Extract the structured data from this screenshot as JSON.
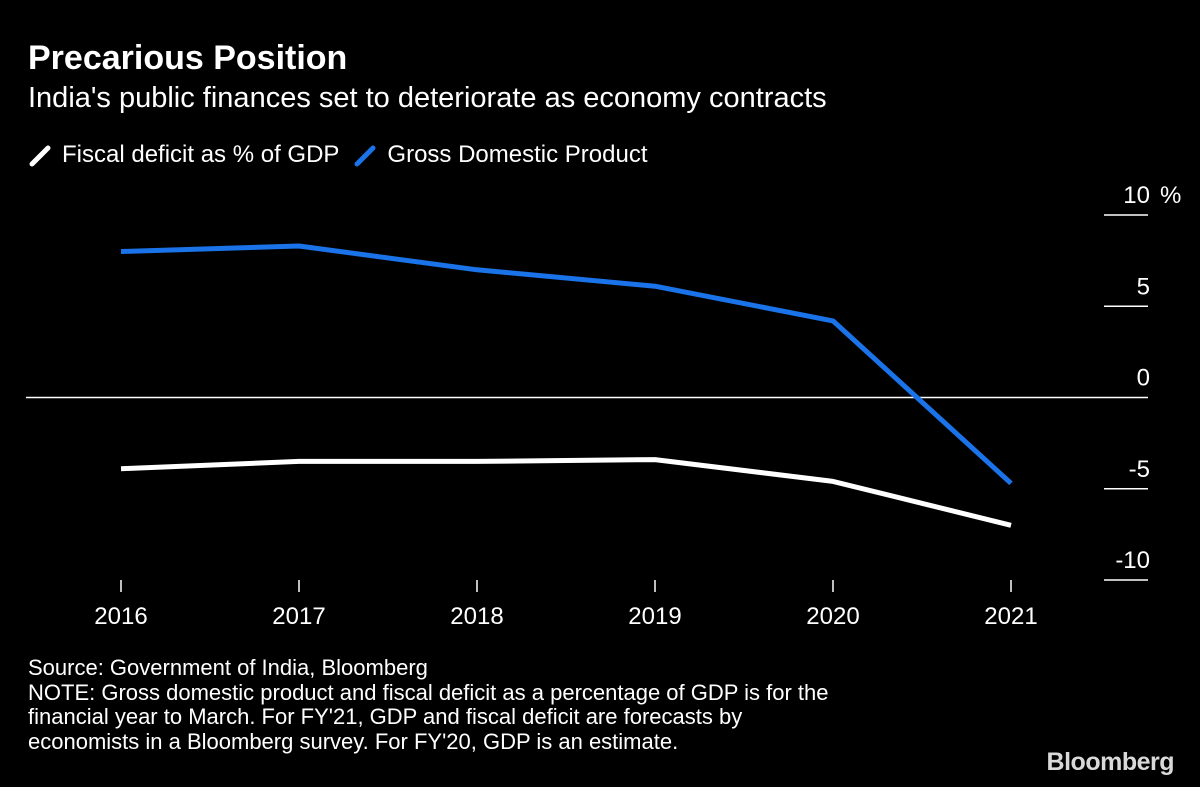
{
  "chart_data": {
    "type": "line",
    "title": "Precarious Position",
    "subtitle": "India's public finances set to deteriorate as economy contracts",
    "categories": [
      "2016",
      "2017",
      "2018",
      "2019",
      "2020",
      "2021"
    ],
    "series": [
      {
        "name": "Fiscal deficit as % of GDP",
        "color": "#ffffff",
        "values": [
          -3.9,
          -3.5,
          -3.5,
          -3.4,
          -4.6,
          -7.0
        ]
      },
      {
        "name": "Gross Domestic Product",
        "color": "#1a73e8",
        "values": [
          8.0,
          8.3,
          7.0,
          6.1,
          4.2,
          -4.7
        ]
      }
    ],
    "ylim": [
      -10,
      10
    ],
    "yticks": [
      10,
      5,
      0,
      -5,
      -10
    ],
    "ytick_labels": [
      "10",
      "5",
      "0",
      "-5",
      "-10"
    ],
    "yunit": "%",
    "zero_line": true,
    "legend_position": "top-left",
    "xlabel": "",
    "ylabel": ""
  },
  "footer": {
    "source": "Source: Government of India, Bloomberg",
    "note_line1": "NOTE: Gross domestic product and fiscal deficit as a percentage of GDP is for the",
    "note_line2": "financial year to March. For FY'21, GDP and fiscal deficit are forecasts by",
    "note_line3": "economists in a Bloomberg survey. For FY'20, GDP is an estimate."
  },
  "brand": "Bloomberg"
}
